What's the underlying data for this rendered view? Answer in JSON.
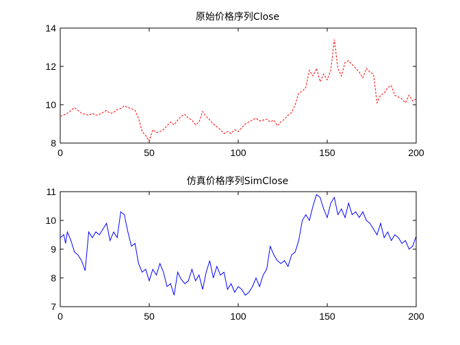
{
  "chart_data": [
    {
      "type": "line",
      "title": "原始价格序列Close",
      "xlabel": "",
      "ylabel": "",
      "xlim": [
        0,
        200
      ],
      "ylim": [
        8,
        14
      ],
      "xticks": [
        0,
        50,
        100,
        150,
        200
      ],
      "yticks": [
        8,
        10,
        12,
        14
      ],
      "grid": false,
      "line_style": "dashed",
      "color": "#ff0000",
      "series": [
        {
          "x": [
            0,
            3,
            6,
            8,
            10,
            12,
            14,
            16,
            18,
            20,
            22,
            24,
            26,
            28,
            30,
            32,
            34,
            36,
            38,
            40,
            42,
            44,
            46,
            48,
            50,
            52,
            54,
            56,
            58,
            60,
            62,
            64,
            66,
            68,
            70,
            72,
            74,
            76,
            78,
            80,
            82,
            84,
            86,
            88,
            90,
            92,
            94,
            96,
            98,
            100,
            102,
            104,
            106,
            108,
            110,
            112,
            114,
            116,
            118,
            120,
            122,
            124,
            126,
            128,
            130,
            132,
            134,
            136,
            138,
            140,
            142,
            144,
            146,
            148,
            150,
            152,
            154,
            156,
            158,
            160,
            162,
            164,
            166,
            168,
            170,
            172,
            174,
            176,
            178,
            180,
            182,
            184,
            186,
            188,
            190,
            192,
            194,
            196,
            198,
            200
          ],
          "values": [
            9.4,
            9.5,
            9.7,
            9.85,
            9.7,
            9.55,
            9.5,
            9.45,
            9.55,
            9.45,
            9.5,
            9.6,
            9.7,
            9.55,
            9.6,
            9.75,
            9.8,
            9.95,
            9.85,
            9.8,
            9.7,
            9.3,
            8.6,
            8.4,
            8.1,
            8.7,
            8.55,
            8.6,
            8.7,
            8.9,
            9.1,
            8.95,
            9.2,
            9.4,
            9.5,
            9.3,
            9.2,
            8.95,
            9.1,
            9.65,
            9.4,
            9.2,
            9.0,
            8.85,
            8.7,
            8.5,
            8.6,
            8.5,
            8.7,
            8.6,
            8.8,
            9.0,
            9.1,
            9.2,
            9.3,
            9.15,
            9.2,
            9.25,
            9.1,
            9.2,
            8.9,
            9.1,
            9.25,
            9.45,
            9.6,
            10.0,
            10.6,
            10.7,
            10.9,
            11.8,
            11.5,
            11.9,
            11.2,
            11.6,
            11.3,
            11.8,
            13.4,
            11.9,
            11.5,
            12.2,
            12.3,
            12.1,
            11.9,
            11.7,
            11.4,
            11.9,
            11.7,
            11.6,
            10.1,
            10.5,
            10.6,
            10.9,
            11.0,
            10.5,
            10.4,
            10.3,
            10.1,
            10.5,
            10.2,
            10.3
          ]
        }
      ]
    },
    {
      "type": "line",
      "title": "仿真价格序列SimClose",
      "xlabel": "",
      "ylabel": "",
      "xlim": [
        0,
        200
      ],
      "ylim": [
        7,
        11
      ],
      "xticks": [
        0,
        50,
        100,
        150,
        200
      ],
      "yticks": [
        7,
        8,
        9,
        10,
        11
      ],
      "grid": false,
      "line_style": "solid",
      "color": "#0000ff",
      "series": [
        {
          "x": [
            0,
            2,
            3,
            4,
            6,
            8,
            10,
            12,
            14,
            16,
            18,
            20,
            22,
            24,
            26,
            28,
            30,
            32,
            34,
            36,
            38,
            40,
            42,
            44,
            46,
            48,
            50,
            52,
            54,
            56,
            58,
            60,
            62,
            64,
            66,
            68,
            70,
            72,
            74,
            76,
            78,
            80,
            82,
            84,
            86,
            88,
            90,
            92,
            94,
            96,
            98,
            100,
            102,
            104,
            106,
            108,
            110,
            112,
            114,
            116,
            118,
            120,
            122,
            124,
            126,
            128,
            130,
            132,
            134,
            136,
            138,
            140,
            142,
            144,
            146,
            148,
            150,
            152,
            154,
            156,
            158,
            160,
            162,
            164,
            166,
            168,
            170,
            172,
            174,
            176,
            178,
            180,
            182,
            184,
            186,
            188,
            190,
            192,
            194,
            196,
            198,
            200
          ],
          "values": [
            9.4,
            9.5,
            9.2,
            9.6,
            9.3,
            8.9,
            8.8,
            8.6,
            8.25,
            9.6,
            9.4,
            9.6,
            9.5,
            9.7,
            9.9,
            9.3,
            9.6,
            9.4,
            10.3,
            10.2,
            9.6,
            9.1,
            9.2,
            8.5,
            8.2,
            8.3,
            7.9,
            8.3,
            8.1,
            8.5,
            8.2,
            7.7,
            7.8,
            7.4,
            8.2,
            7.95,
            7.8,
            7.9,
            8.3,
            7.9,
            8.1,
            7.6,
            8.2,
            8.6,
            8.0,
            8.4,
            8.1,
            8.2,
            7.6,
            7.8,
            7.5,
            7.7,
            7.6,
            7.4,
            7.5,
            7.7,
            8.0,
            7.7,
            8.1,
            8.3,
            9.1,
            8.8,
            8.6,
            8.5,
            8.6,
            8.4,
            8.8,
            8.9,
            9.3,
            10.0,
            10.2,
            10.0,
            10.5,
            10.9,
            10.8,
            10.4,
            10.1,
            10.6,
            10.8,
            10.2,
            10.4,
            10.1,
            10.6,
            10.2,
            10.3,
            10.1,
            10.3,
            10.0,
            9.9,
            9.7,
            9.5,
            9.9,
            9.4,
            9.6,
            9.3,
            9.5,
            9.4,
            9.2,
            9.3,
            9.0,
            9.1,
            9.45
          ]
        }
      ]
    }
  ]
}
